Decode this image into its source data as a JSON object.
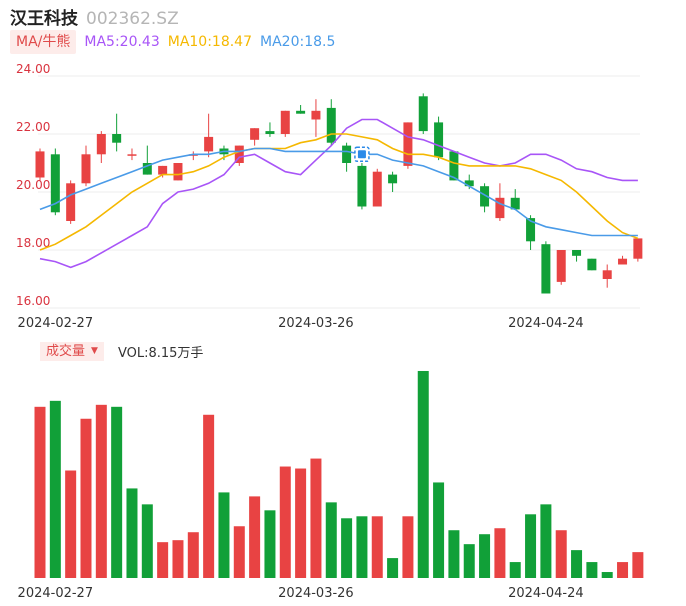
{
  "header": {
    "name": "汉王科技",
    "code": "002362.SZ"
  },
  "ma_legend": {
    "tag": "MA/牛熊",
    "items": [
      {
        "label": "MA5:20.43",
        "color": "#a855f7"
      },
      {
        "label": "MA10:18.47",
        "color": "#f5b800"
      },
      {
        "label": "MA20:18.5",
        "color": "#4a9be8"
      }
    ]
  },
  "volume_legend": {
    "tag": "成交量",
    "caret": "▼",
    "text": "VOL:8.15万手"
  },
  "colors": {
    "up": "#e84343",
    "down": "#11a038",
    "grid": "#ececec",
    "axis_text": "#d9333f",
    "date_text": "#333333"
  },
  "chart_data": [
    {
      "type": "candlestick",
      "title": "",
      "ylim": [
        16,
        24
      ],
      "y_ticks": [
        "24.00",
        "22.00",
        "20.00",
        "18.00",
        "16.00"
      ],
      "x_tick_labels": [
        {
          "index": 1,
          "label": "2024-02-27"
        },
        {
          "index": 18,
          "label": "2024-03-26"
        },
        {
          "index": 33,
          "label": "2024-04-24"
        }
      ],
      "ohlc": [
        [
          20.5,
          21.5,
          20.4,
          21.4
        ],
        [
          21.3,
          21.5,
          19.2,
          19.3
        ],
        [
          19.0,
          20.4,
          18.9,
          20.3
        ],
        [
          20.3,
          21.6,
          20.2,
          21.3
        ],
        [
          21.3,
          22.1,
          21.0,
          22.0
        ],
        [
          22.0,
          22.7,
          21.4,
          21.7
        ],
        [
          21.3,
          21.5,
          21.1,
          21.3
        ],
        [
          21.0,
          21.6,
          20.6,
          20.6
        ],
        [
          20.6,
          20.9,
          20.5,
          20.9
        ],
        [
          20.4,
          21.0,
          20.4,
          21.0
        ],
        [
          21.3,
          21.4,
          21.1,
          21.3
        ],
        [
          21.4,
          22.7,
          21.2,
          21.9
        ],
        [
          21.5,
          21.6,
          21.1,
          21.3
        ],
        [
          21.0,
          21.6,
          20.9,
          21.6
        ],
        [
          21.8,
          22.2,
          21.6,
          22.2
        ],
        [
          22.1,
          22.4,
          21.9,
          22.0
        ],
        [
          22.0,
          22.8,
          21.9,
          22.8
        ],
        [
          22.8,
          23.0,
          22.7,
          22.7
        ],
        [
          22.5,
          23.2,
          21.9,
          22.8
        ],
        [
          22.9,
          23.2,
          21.6,
          21.7
        ],
        [
          21.6,
          21.7,
          20.7,
          21.0
        ],
        [
          20.9,
          21.0,
          19.4,
          19.5
        ],
        [
          19.5,
          20.8,
          19.5,
          20.7
        ],
        [
          20.6,
          20.7,
          20.0,
          20.3
        ],
        [
          20.9,
          22.4,
          20.8,
          22.4
        ],
        [
          23.3,
          23.4,
          22.0,
          22.1
        ],
        [
          22.4,
          22.6,
          21.1,
          21.2
        ],
        [
          21.4,
          21.4,
          20.4,
          20.4
        ],
        [
          20.4,
          20.6,
          20.1,
          20.2
        ],
        [
          20.2,
          20.3,
          19.3,
          19.5
        ],
        [
          19.1,
          20.3,
          19.0,
          19.8
        ],
        [
          19.8,
          20.1,
          19.4,
          19.4
        ],
        [
          19.1,
          19.2,
          18.0,
          18.3
        ],
        [
          18.2,
          18.3,
          16.5,
          16.5
        ],
        [
          16.9,
          18.0,
          16.8,
          18.0
        ],
        [
          18.0,
          18.0,
          17.6,
          17.8
        ],
        [
          17.7,
          17.7,
          17.3,
          17.3
        ],
        [
          17.0,
          17.5,
          16.7,
          17.3
        ],
        [
          17.5,
          17.8,
          17.5,
          17.7
        ],
        [
          17.7,
          18.4,
          17.6,
          18.4
        ]
      ],
      "series": [
        {
          "name": "MA5",
          "color": "#a855f7",
          "values": [
            17.7,
            17.6,
            17.4,
            17.6,
            17.9,
            18.2,
            18.5,
            18.8,
            19.6,
            20.0,
            20.1,
            20.3,
            20.6,
            21.2,
            21.3,
            21.0,
            20.7,
            20.6,
            21.1,
            21.6,
            22.2,
            22.5,
            22.5,
            22.2,
            21.9,
            21.8,
            21.6,
            21.4,
            21.2,
            21.0,
            20.9,
            21.0,
            21.3,
            21.3,
            21.1,
            20.8,
            20.7,
            20.5,
            20.4,
            20.4
          ]
        },
        {
          "name": "MA10",
          "color": "#f5b800",
          "values": [
            18.0,
            18.2,
            18.5,
            18.8,
            19.2,
            19.6,
            20.0,
            20.3,
            20.6,
            20.6,
            20.7,
            20.9,
            21.2,
            21.4,
            21.5,
            21.5,
            21.5,
            21.7,
            21.8,
            22.0,
            22.0,
            21.9,
            21.8,
            21.5,
            21.3,
            21.3,
            21.2,
            21.0,
            20.9,
            20.9,
            20.9,
            20.9,
            20.8,
            20.6,
            20.4,
            20.0,
            19.5,
            19.0,
            18.6,
            18.4
          ]
        },
        {
          "name": "MA20",
          "color": "#4a9be8",
          "values": [
            19.4,
            19.6,
            19.9,
            20.1,
            20.3,
            20.5,
            20.7,
            20.9,
            21.1,
            21.2,
            21.3,
            21.3,
            21.4,
            21.4,
            21.5,
            21.5,
            21.4,
            21.4,
            21.4,
            21.4,
            21.4,
            21.3,
            21.3,
            21.1,
            21.0,
            20.9,
            20.7,
            20.5,
            20.2,
            19.9,
            19.6,
            19.4,
            19.0,
            18.8,
            18.7,
            18.6,
            18.5,
            18.5,
            18.5,
            18.5
          ]
        }
      ]
    },
    {
      "type": "bar",
      "title": "",
      "ylim": [
        0,
        10.6
      ],
      "x_tick_labels": [
        {
          "index": 1,
          "label": "2024-02-27"
        },
        {
          "index": 18,
          "label": "2024-03-26"
        },
        {
          "index": 33,
          "label": "2024-04-24"
        }
      ],
      "values": [
        8.6,
        8.9,
        5.4,
        8.0,
        8.7,
        8.6,
        4.5,
        3.7,
        1.8,
        1.9,
        2.3,
        8.2,
        4.3,
        2.6,
        4.1,
        3.4,
        5.6,
        5.5,
        6.0,
        3.8,
        3.0,
        3.1,
        3.1,
        1.0,
        3.1,
        10.4,
        4.8,
        2.4,
        1.7,
        2.2,
        2.5,
        0.8,
        3.2,
        3.7,
        2.4,
        1.4,
        0.8,
        0.3,
        0.8,
        1.3
      ],
      "direction": [
        "up",
        "down",
        "up",
        "up",
        "up",
        "down",
        "down",
        "down",
        "up",
        "up",
        "up",
        "up",
        "down",
        "up",
        "up",
        "down",
        "up",
        "up",
        "up",
        "down",
        "down",
        "down",
        "up",
        "down",
        "up",
        "down",
        "down",
        "down",
        "down",
        "down",
        "up",
        "down",
        "down",
        "down",
        "up",
        "down",
        "down",
        "down",
        "up",
        "up"
      ]
    }
  ]
}
